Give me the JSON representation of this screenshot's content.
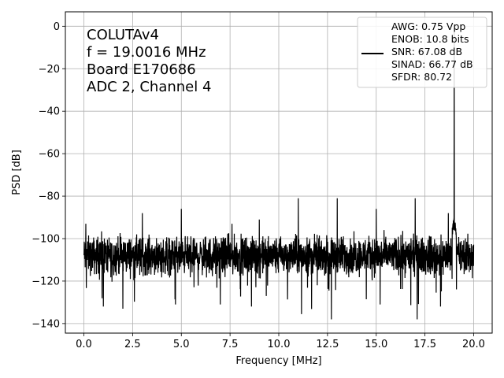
{
  "chart_data": {
    "type": "line",
    "xlabel": "Frequency [MHz]",
    "ylabel": "PSD [dB]",
    "xlim": [
      -0.95,
      20.95
    ],
    "ylim": [
      -144.5,
      6.8
    ],
    "x_ticks": [
      0.0,
      2.5,
      5.0,
      7.5,
      10.0,
      12.5,
      15.0,
      17.5,
      20.0
    ],
    "x_tick_labels": [
      "0.0",
      "2.5",
      "5.0",
      "7.5",
      "10.0",
      "12.5",
      "15.0",
      "17.5",
      "20.0"
    ],
    "y_ticks": [
      0,
      -20,
      -40,
      -60,
      -80,
      -100,
      -120,
      -140
    ],
    "y_tick_labels": [
      "0",
      "−20",
      "−40",
      "−60",
      "−80",
      "−100",
      "−120",
      "−140"
    ],
    "grid": true,
    "series": [
      {
        "color": "#000000",
        "noise_floor_db": -108,
        "noise_range_db": [
          -138,
          -93
        ],
        "x_range": [
          0.0,
          20.0
        ],
        "peaks": [
          {
            "x": 19.0,
            "y": 0.0
          },
          {
            "x": 0.1,
            "y": -93
          },
          {
            "x": 11.0,
            "y": -81
          },
          {
            "x": 13.0,
            "y": -81
          },
          {
            "x": 17.0,
            "y": -81
          },
          {
            "x": 5.0,
            "y": -86
          },
          {
            "x": 15.0,
            "y": -86
          },
          {
            "x": 3.0,
            "y": -88
          },
          {
            "x": 9.0,
            "y": -91
          },
          {
            "x": 7.6,
            "y": -93
          },
          {
            "x": 18.7,
            "y": -88
          }
        ],
        "dips": [
          {
            "x": 12.7,
            "y": -138
          },
          {
            "x": 17.1,
            "y": -138
          },
          {
            "x": 2.0,
            "y": -133
          },
          {
            "x": 1.0,
            "y": -132
          },
          {
            "x": 4.7,
            "y": -131
          },
          {
            "x": 7.0,
            "y": -131
          },
          {
            "x": 8.6,
            "y": -132
          },
          {
            "x": 15.2,
            "y": -131
          },
          {
            "x": 18.3,
            "y": -132
          }
        ]
      }
    ],
    "annotation_lines": [
      "COLUTAv4",
      "f = 19.0016 MHz",
      "Board E170686",
      "ADC 2, Channel 4"
    ],
    "legend": {
      "position": "top-right",
      "lines": [
        "AWG: 0.75 Vpp",
        "ENOB: 10.8 bits",
        "SNR: 67.08 dB",
        "SINAD: 66.77 dB",
        "SFDR: 80.72"
      ]
    }
  }
}
